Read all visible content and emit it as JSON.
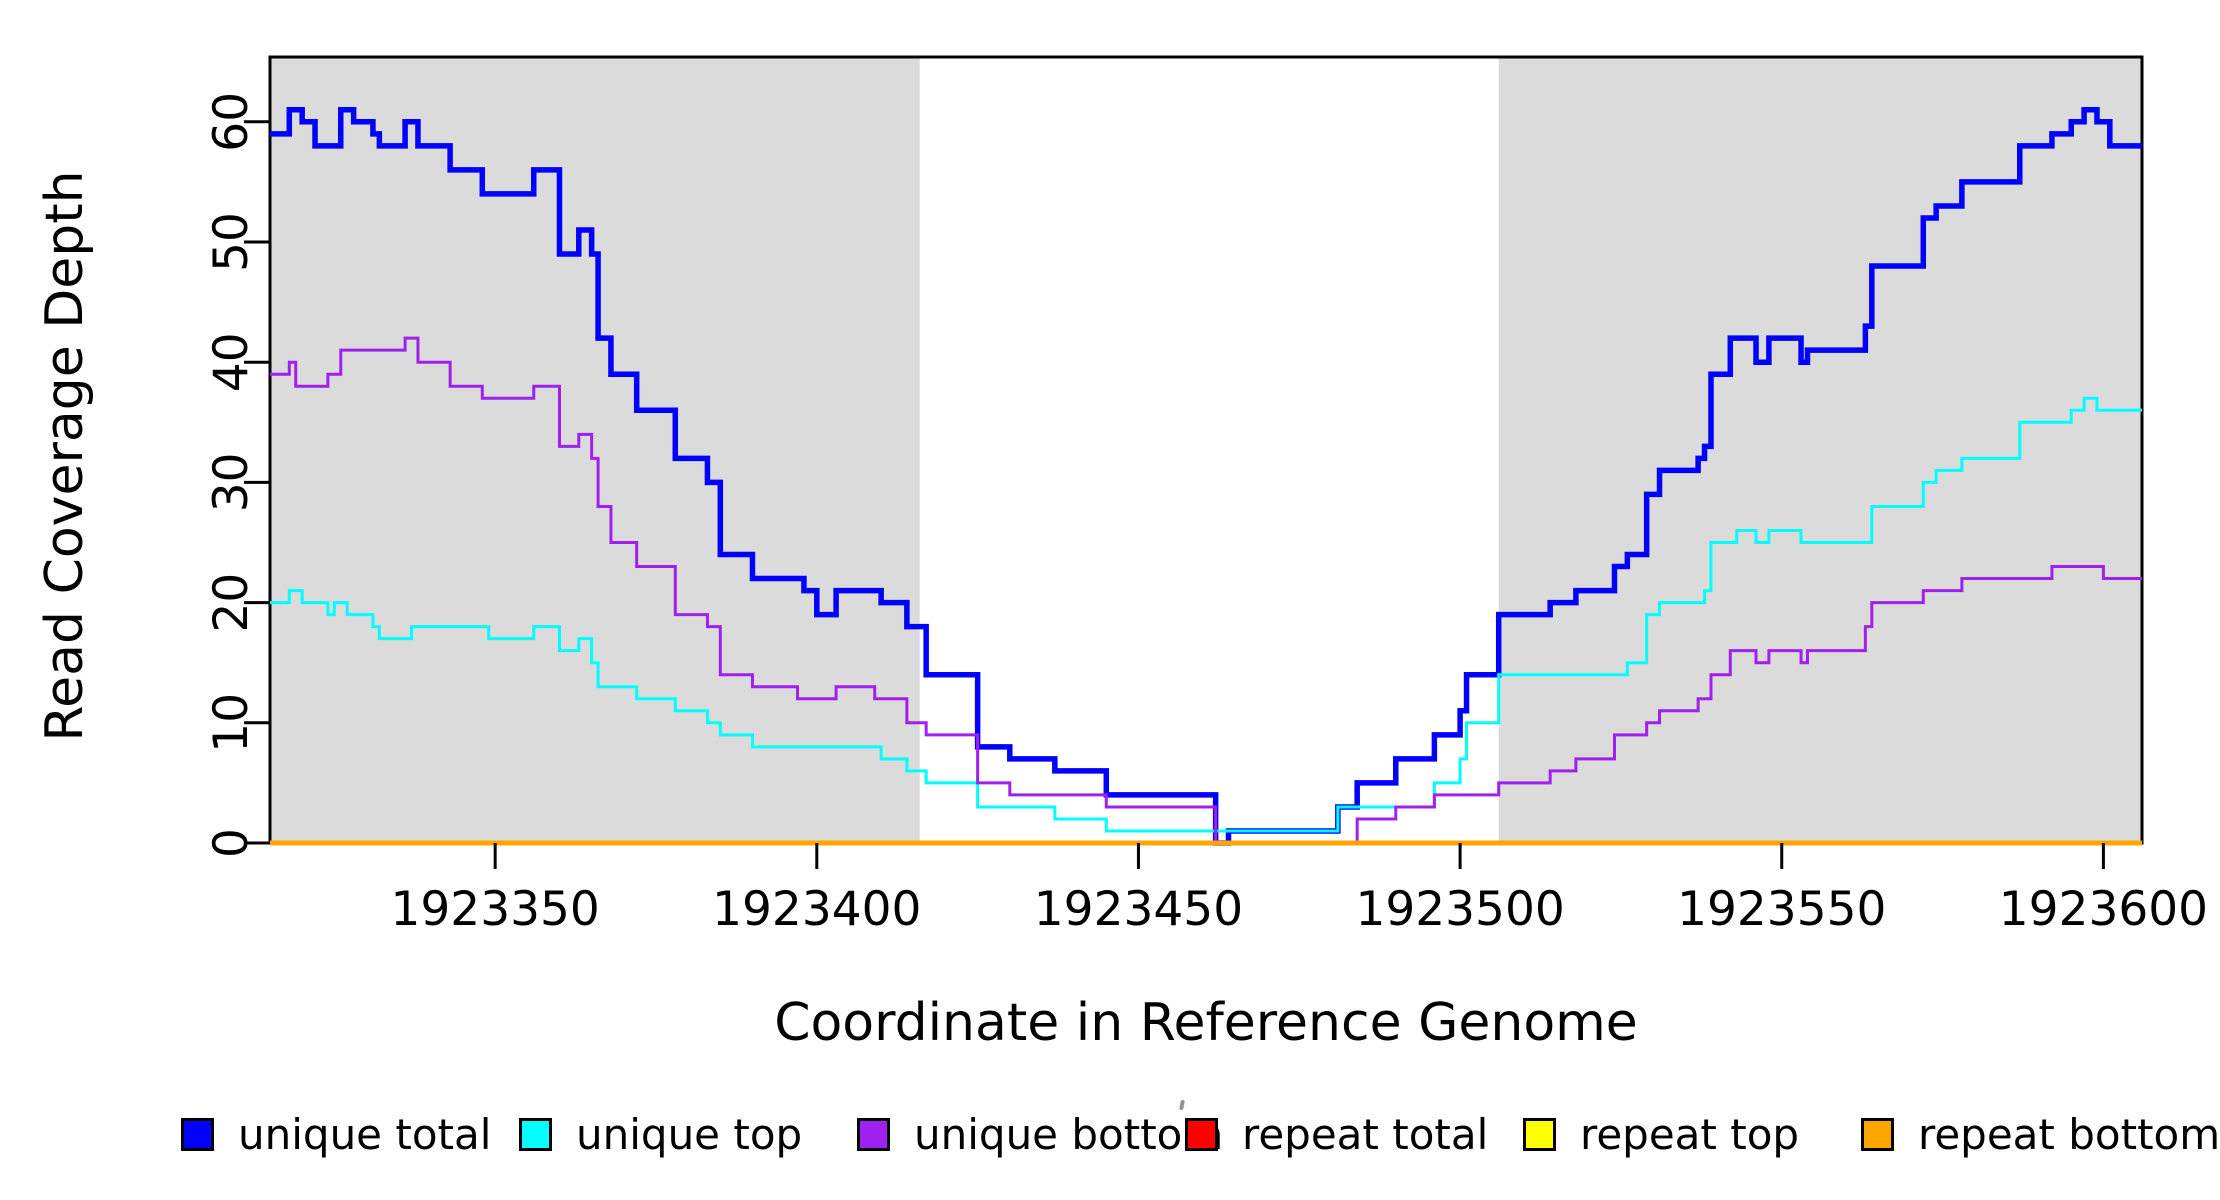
{
  "x_axis": {
    "label": "Coordinate in Reference Genome",
    "ticks": [
      1923350,
      1923400,
      1923450,
      1923500,
      1923550,
      1923600
    ]
  },
  "y_axis": {
    "label": "Read Coverage Depth",
    "ticks": [
      0,
      10,
      20,
      30,
      40,
      50,
      60
    ]
  },
  "legend": {
    "items": [
      {
        "label": "unique total",
        "color": "#0000FF"
      },
      {
        "label": "unique top",
        "color": "#00FFFF"
      },
      {
        "label": "unique bottom",
        "color": "#A020F0"
      },
      {
        "label": "repeat total",
        "color": "#FF0000"
      },
      {
        "label": "repeat top",
        "color": "#FFFF00"
      },
      {
        "label": "repeat bottom",
        "color": "#FFA500"
      }
    ]
  },
  "chart_data": {
    "type": "line",
    "subtype": "step-coverage",
    "title": "",
    "xlabel": "Coordinate in Reference Genome",
    "ylabel": "Read Coverage Depth",
    "x_domain": [
      1923315,
      1923606
    ],
    "y_domain": [
      0,
      65
    ],
    "grid": false,
    "legend_position": "bottom",
    "background_color": "#ffffff",
    "shaded_region_color": "#DBDBDB",
    "shaded_regions": [
      {
        "from": 1923315,
        "to": 1923416
      },
      {
        "from": 1923506,
        "to": 1923606
      }
    ],
    "series": [
      {
        "name": "unique total",
        "color": "#0000FF",
        "line_width": 5.5,
        "steps": [
          [
            1923315,
            59
          ],
          [
            1923318,
            61
          ],
          [
            1923320,
            60
          ],
          [
            1923322,
            58
          ],
          [
            1923326,
            61
          ],
          [
            1923328,
            60
          ],
          [
            1923331,
            59
          ],
          [
            1923332,
            58
          ],
          [
            1923336,
            60
          ],
          [
            1923338,
            58
          ],
          [
            1923343,
            56
          ],
          [
            1923348,
            54
          ],
          [
            1923356,
            56
          ],
          [
            1923360,
            49
          ],
          [
            1923363,
            51
          ],
          [
            1923365,
            49
          ],
          [
            1923366,
            42
          ],
          [
            1923368,
            39
          ],
          [
            1923372,
            36
          ],
          [
            1923378,
            32
          ],
          [
            1923383,
            30
          ],
          [
            1923385,
            24
          ],
          [
            1923390,
            22
          ],
          [
            1923398,
            21
          ],
          [
            1923400,
            19
          ],
          [
            1923403,
            21
          ],
          [
            1923410,
            20
          ],
          [
            1923414,
            18
          ],
          [
            1923417,
            14
          ],
          [
            1923425,
            8
          ],
          [
            1923430,
            7
          ],
          [
            1923437,
            6
          ],
          [
            1923445,
            4
          ],
          [
            1923462,
            0
          ],
          [
            1923464,
            1
          ],
          [
            1923481,
            3
          ],
          [
            1923484,
            5
          ],
          [
            1923490,
            7
          ],
          [
            1923496,
            9
          ],
          [
            1923500,
            11
          ],
          [
            1923501,
            14
          ],
          [
            1923506,
            19
          ],
          [
            1923514,
            20
          ],
          [
            1923518,
            21
          ],
          [
            1923524,
            23
          ],
          [
            1923526,
            24
          ],
          [
            1923529,
            29
          ],
          [
            1923531,
            31
          ],
          [
            1923537,
            32
          ],
          [
            1923538,
            33
          ],
          [
            1923539,
            39
          ],
          [
            1923542,
            42
          ],
          [
            1923546,
            40
          ],
          [
            1923548,
            42
          ],
          [
            1923553,
            40
          ],
          [
            1923554,
            41
          ],
          [
            1923563,
            43
          ],
          [
            1923564,
            48
          ],
          [
            1923572,
            52
          ],
          [
            1923574,
            53
          ],
          [
            1923578,
            55
          ],
          [
            1923587,
            58
          ],
          [
            1923592,
            59
          ],
          [
            1923595,
            60
          ],
          [
            1923597,
            61
          ],
          [
            1923599,
            60
          ],
          [
            1923601,
            58
          ]
        ]
      },
      {
        "name": "unique top",
        "color": "#00FFFF",
        "line_width": 3,
        "steps": [
          [
            1923315,
            20
          ],
          [
            1923318,
            21
          ],
          [
            1923320,
            20
          ],
          [
            1923324,
            19
          ],
          [
            1923325,
            20
          ],
          [
            1923327,
            19
          ],
          [
            1923331,
            18
          ],
          [
            1923332,
            17
          ],
          [
            1923337,
            18
          ],
          [
            1923349,
            17
          ],
          [
            1923356,
            18
          ],
          [
            1923360,
            16
          ],
          [
            1923363,
            17
          ],
          [
            1923365,
            15
          ],
          [
            1923366,
            13
          ],
          [
            1923372,
            12
          ],
          [
            1923378,
            11
          ],
          [
            1923383,
            10
          ],
          [
            1923385,
            9
          ],
          [
            1923390,
            8
          ],
          [
            1923403,
            8
          ],
          [
            1923410,
            7
          ],
          [
            1923414,
            6
          ],
          [
            1923417,
            5
          ],
          [
            1923425,
            3
          ],
          [
            1923437,
            2
          ],
          [
            1923445,
            1
          ],
          [
            1923481,
            3
          ],
          [
            1923496,
            5
          ],
          [
            1923500,
            7
          ],
          [
            1923501,
            10
          ],
          [
            1923506,
            14
          ],
          [
            1923526,
            15
          ],
          [
            1923529,
            19
          ],
          [
            1923531,
            20
          ],
          [
            1923538,
            21
          ],
          [
            1923539,
            25
          ],
          [
            1923543,
            26
          ],
          [
            1923546,
            25
          ],
          [
            1923548,
            26
          ],
          [
            1923553,
            25
          ],
          [
            1923564,
            28
          ],
          [
            1923572,
            30
          ],
          [
            1923574,
            31
          ],
          [
            1923578,
            32
          ],
          [
            1923587,
            35
          ],
          [
            1923595,
            36
          ],
          [
            1923597,
            37
          ],
          [
            1923599,
            36
          ]
        ]
      },
      {
        "name": "unique bottom",
        "color": "#A020F0",
        "line_width": 3,
        "steps": [
          [
            1923315,
            39
          ],
          [
            1923318,
            40
          ],
          [
            1923319,
            38
          ],
          [
            1923324,
            39
          ],
          [
            1923326,
            41
          ],
          [
            1923336,
            42
          ],
          [
            1923338,
            40
          ],
          [
            1923343,
            38
          ],
          [
            1923348,
            37
          ],
          [
            1923356,
            38
          ],
          [
            1923360,
            33
          ],
          [
            1923363,
            34
          ],
          [
            1923365,
            32
          ],
          [
            1923366,
            28
          ],
          [
            1923368,
            25
          ],
          [
            1923372,
            23
          ],
          [
            1923378,
            19
          ],
          [
            1923383,
            18
          ],
          [
            1923385,
            14
          ],
          [
            1923390,
            13
          ],
          [
            1923397,
            12
          ],
          [
            1923403,
            13
          ],
          [
            1923409,
            12
          ],
          [
            1923414,
            10
          ],
          [
            1923417,
            9
          ],
          [
            1923425,
            5
          ],
          [
            1923430,
            4
          ],
          [
            1923445,
            3
          ],
          [
            1923462,
            0
          ],
          [
            1923484,
            2
          ],
          [
            1923490,
            3
          ],
          [
            1923496,
            4
          ],
          [
            1923506,
            5
          ],
          [
            1923514,
            6
          ],
          [
            1923518,
            7
          ],
          [
            1923524,
            9
          ],
          [
            1923529,
            10
          ],
          [
            1923531,
            11
          ],
          [
            1923537,
            12
          ],
          [
            1923539,
            14
          ],
          [
            1923542,
            16
          ],
          [
            1923546,
            15
          ],
          [
            1923548,
            16
          ],
          [
            1923553,
            15
          ],
          [
            1923554,
            16
          ],
          [
            1923563,
            18
          ],
          [
            1923564,
            20
          ],
          [
            1923572,
            21
          ],
          [
            1923578,
            22
          ],
          [
            1923592,
            23
          ],
          [
            1923600,
            22
          ]
        ]
      },
      {
        "name": "repeat total",
        "color": "#FF0000",
        "line_width": 3,
        "steps": [
          [
            1923315,
            0
          ]
        ]
      },
      {
        "name": "repeat top",
        "color": "#FFFF00",
        "line_width": 3,
        "steps": [
          [
            1923315,
            0
          ]
        ]
      },
      {
        "name": "repeat bottom",
        "color": "#FFA500",
        "line_width": 5,
        "steps": [
          [
            1923315,
            0
          ]
        ]
      }
    ]
  }
}
